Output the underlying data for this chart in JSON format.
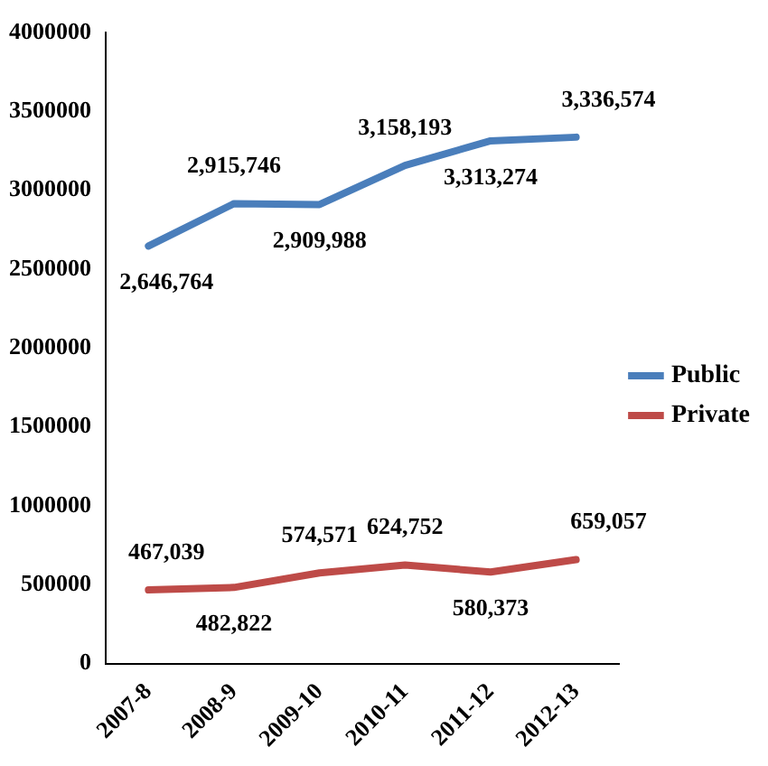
{
  "chart_data": {
    "type": "line",
    "categories": [
      "2007-8",
      "2008-9",
      "2009-10",
      "2010-11",
      "2011-12",
      "2012-13"
    ],
    "series": [
      {
        "name": "Public",
        "color": "#4a7ebb",
        "values": [
          2646764,
          2915746,
          2909988,
          3158193,
          3313274,
          3336574
        ],
        "value_labels": [
          "2,646,764",
          "2,915,746",
          "2,909,988",
          "3,158,193",
          "3,313,274",
          "3,336,574"
        ]
      },
      {
        "name": "Private",
        "color": "#be4b48",
        "values": [
          467039,
          482822,
          574571,
          624752,
          580373,
          659057
        ],
        "value_labels": [
          "467,039",
          "482,822",
          "574,571",
          "624,752",
          "580,373",
          "659,057"
        ]
      }
    ],
    "ylim": [
      0,
      4000000
    ],
    "yticks": [
      0,
      500000,
      1000000,
      1500000,
      2000000,
      2500000,
      3000000,
      3500000,
      4000000
    ],
    "grid": false,
    "legend": "right",
    "marker": "none",
    "line_style": "solid"
  }
}
